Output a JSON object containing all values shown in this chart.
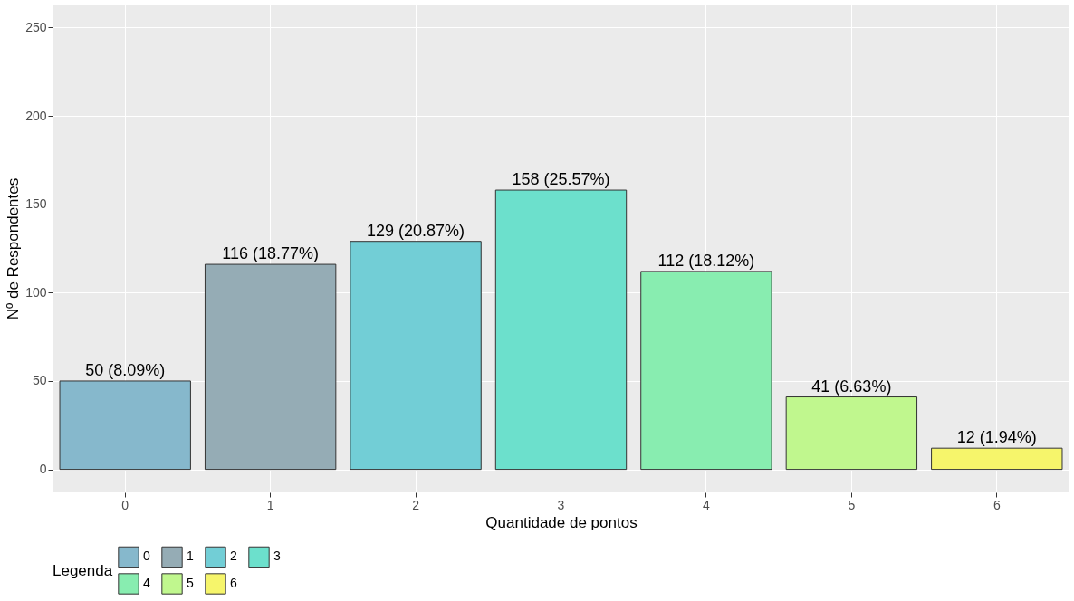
{
  "chart_data": {
    "type": "bar",
    "xlabel": "Quantidade de pontos",
    "ylabel": "Nº de Respondentes",
    "legend_title": "Legenda",
    "categories": [
      "0",
      "1",
      "2",
      "3",
      "4",
      "5",
      "6"
    ],
    "series": [
      {
        "name": "0",
        "color": "#86b8cc",
        "values": [
          50,
          null,
          null,
          null,
          null,
          null,
          null
        ],
        "value_labels": [
          "50 (8.09%)",
          null,
          null,
          null,
          null,
          null,
          null
        ]
      },
      {
        "name": "1",
        "color": "#95acb5",
        "values": [
          null,
          116,
          null,
          null,
          null,
          null,
          null
        ],
        "value_labels": [
          null,
          "116 (18.77%)",
          null,
          null,
          null,
          null,
          null
        ]
      },
      {
        "name": "2",
        "color": "#72ced6",
        "values": [
          null,
          null,
          129,
          null,
          null,
          null,
          null
        ],
        "value_labels": [
          null,
          null,
          "129 (20.87%)",
          null,
          null,
          null,
          null
        ]
      },
      {
        "name": "3",
        "color": "#6ce0cc",
        "values": [
          null,
          null,
          null,
          158,
          null,
          null,
          null
        ],
        "value_labels": [
          null,
          null,
          null,
          "158 (25.57%)",
          null,
          null,
          null
        ]
      },
      {
        "name": "4",
        "color": "#88edb0",
        "values": [
          null,
          null,
          null,
          null,
          112,
          null,
          null
        ],
        "value_labels": [
          null,
          null,
          null,
          null,
          "112 (18.12%)",
          null,
          null
        ]
      },
      {
        "name": "5",
        "color": "#c0f78e",
        "values": [
          null,
          null,
          null,
          null,
          null,
          41,
          null
        ],
        "value_labels": [
          null,
          null,
          null,
          null,
          null,
          "41 (6.63%)",
          null
        ]
      },
      {
        "name": "6",
        "color": "#f6f56b",
        "values": [
          null,
          null,
          null,
          null,
          null,
          null,
          12
        ],
        "value_labels": [
          null,
          null,
          null,
          null,
          null,
          null,
          "12 (1.94%)"
        ]
      }
    ],
    "ylim": [
      -13,
      263
    ],
    "yticks": [
      0,
      50,
      100,
      150,
      200,
      250
    ],
    "grid": true,
    "legend": "bottom"
  }
}
